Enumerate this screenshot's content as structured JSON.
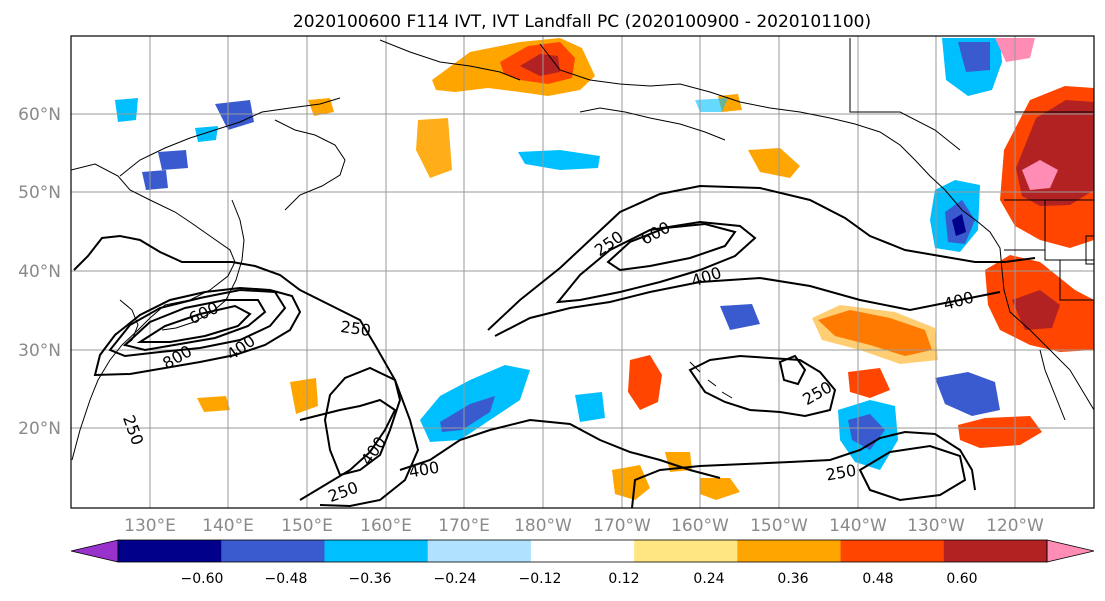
{
  "title": "2020100600 F114 IVT, IVT Landfall PC (2020100900 - 2020101100)",
  "map": {
    "lat_labels": [
      "60°N",
      "50°N",
      "40°N",
      "30°N",
      "20°N"
    ],
    "lon_labels": [
      "130°E",
      "140°E",
      "150°E",
      "160°E",
      "170°E",
      "180°W",
      "170°W",
      "160°W",
      "150°W",
      "140°W",
      "130°W",
      "120°W"
    ],
    "contour_labels": [
      "250",
      "600",
      "400",
      "400",
      "250",
      "800",
      "600",
      "400",
      "250",
      "400",
      "400",
      "250",
      "250",
      "250"
    ],
    "grid": true
  },
  "colorbar": {
    "ticks": [
      "−0.60",
      "−0.48",
      "−0.36",
      "−0.24",
      "−0.12",
      "0.12",
      "0.24",
      "0.36",
      "0.48",
      "0.60"
    ],
    "colors": [
      "#9932cc",
      "#00008b",
      "#3a5bcf",
      "#00bfff",
      "#b0e2ff",
      "#ffffff",
      "#ffe682",
      "#ffa500",
      "#ff4500",
      "#b22222",
      "#ff8cb4"
    ]
  }
}
